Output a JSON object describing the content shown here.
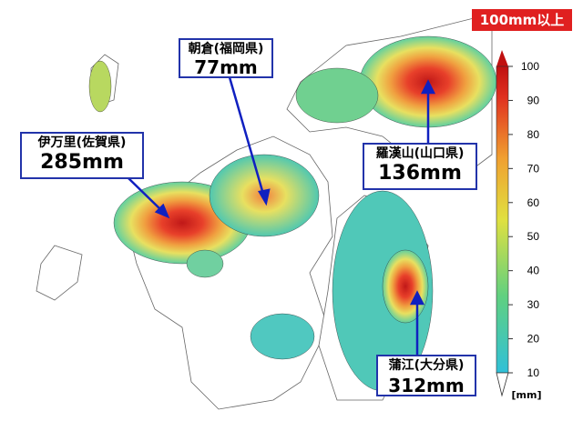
{
  "labels": [
    {
      "place": "伊万里(佐賀県)",
      "amount": "285mm"
    },
    {
      "place": "朝倉(福岡県)",
      "amount": "77mm"
    },
    {
      "place": "羅漢山(山口県)",
      "amount": "136mm"
    },
    {
      "place": "蒲江(大分県)",
      "amount": "312mm"
    }
  ],
  "colorbar": {
    "max_label": "100mm以上",
    "unit": "[mm]",
    "lim": [
      10,
      100
    ],
    "ticks": [
      10,
      20,
      30,
      40,
      50,
      60,
      70,
      80,
      90,
      100
    ]
  }
}
